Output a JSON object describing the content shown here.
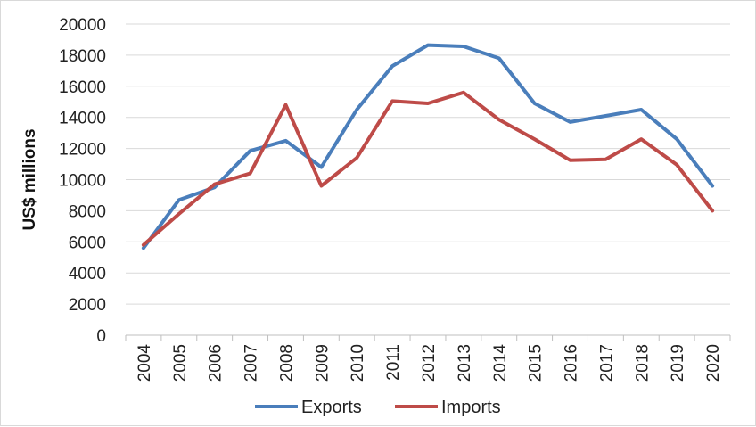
{
  "chart_data": {
    "type": "line",
    "title": "",
    "xlabel": "",
    "ylabel": "US$ millions",
    "x": [
      "2004",
      "2005",
      "2006",
      "2007",
      "2008",
      "2009",
      "2010",
      "2011",
      "2012",
      "2013",
      "2014",
      "2015",
      "2016",
      "2017",
      "2018",
      "2019",
      "2020"
    ],
    "ylim": [
      0,
      20000
    ],
    "yticks": [
      0,
      2000,
      4000,
      6000,
      8000,
      10000,
      12000,
      14000,
      16000,
      18000,
      20000
    ],
    "grid": "horizontal",
    "legend": "bottom",
    "series": [
      {
        "name": "Exports",
        "color": "#4a7ebb",
        "values": [
          5600,
          8700,
          9500,
          11850,
          12500,
          10800,
          14500,
          17300,
          18650,
          18570,
          17800,
          14900,
          13700,
          14100,
          14500,
          12600,
          9600
        ]
      },
      {
        "name": "Imports",
        "color": "#be4b48",
        "values": [
          5800,
          7800,
          9700,
          10400,
          14800,
          9600,
          11400,
          15050,
          14900,
          15600,
          13850,
          12600,
          11250,
          11300,
          12600,
          10950,
          8000
        ]
      }
    ]
  }
}
